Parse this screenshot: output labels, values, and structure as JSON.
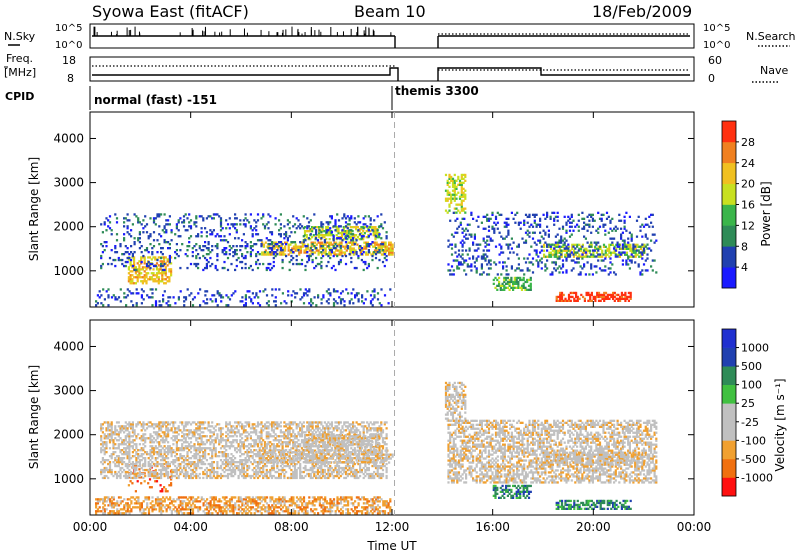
{
  "header": {
    "station": "Syowa East (fitACF)",
    "beam": "Beam 10",
    "date": "18/Feb/2009"
  },
  "strip_panels": {
    "nsky": {
      "label": "N.Sky",
      "tick_top": "10^5",
      "tick_bottom": "10^0"
    },
    "nsearch": {
      "label": "N.Search",
      "tick_top": "10^5",
      "tick_bottom": "10^0"
    },
    "freq": {
      "label_line1": "Freq.",
      "label_line2": "[MHz]",
      "tick_top": "18",
      "tick_bottom": "8"
    },
    "nave": {
      "label": "Nave",
      "tick_top": "60",
      "tick_bottom": "0"
    },
    "cpid": {
      "label": "CPID",
      "modes": [
        "normal (fast) -151",
        "themis 3300"
      ]
    }
  },
  "chart_data": [
    {
      "type": "heatmap",
      "quantity": "Power",
      "ylabel": "Slant Range [km]",
      "ylim": [
        180,
        4600
      ],
      "yticks": [
        1000,
        2000,
        3000,
        4000
      ],
      "xlim": [
        0,
        24
      ],
      "xtick_labels": [
        "00:00",
        "04:00",
        "08:00",
        "12:00",
        "16:00",
        "20:00",
        "00:00"
      ],
      "xticks": [
        0,
        4,
        8,
        12,
        16,
        20,
        24
      ],
      "colorbar": {
        "label": "Power [dB]",
        "tick_labels": [
          "4",
          "8",
          "12",
          "16",
          "20",
          "24",
          "28"
        ],
        "colors": [
          "#1a1aff",
          "#2040b0",
          "#2e8b57",
          "#3ab54a",
          "#c8e020",
          "#f0c020",
          "#f08020",
          "#ff3010"
        ]
      },
      "data_gap": [
        12.2,
        13.85
      ],
      "mode_change_hour": 12.1,
      "regions": [
        {
          "t": [
            0.2,
            11.9
          ],
          "r": [
            200,
            600
          ],
          "level": 1
        },
        {
          "t": [
            1.5,
            3.2
          ],
          "r": [
            700,
            1300
          ],
          "level": 5
        },
        {
          "t": [
            6.8,
            12.0
          ],
          "r": [
            1350,
            1650
          ],
          "level": 5
        },
        {
          "t": [
            8.5,
            11.5
          ],
          "r": [
            1700,
            2000
          ],
          "level": 4
        },
        {
          "t": [
            14.1,
            14.9
          ],
          "r": [
            2300,
            3200
          ],
          "level": 4
        },
        {
          "t": [
            18.0,
            22.0
          ],
          "r": [
            1300,
            1600
          ],
          "level": 4
        },
        {
          "t": [
            18.5,
            21.5
          ],
          "r": [
            300,
            500
          ],
          "level": 7
        },
        {
          "t": [
            16.0,
            17.5
          ],
          "r": [
            550,
            850
          ],
          "level": 3
        },
        {
          "t": [
            0.4,
            11.8
          ],
          "r": [
            1000,
            2300
          ],
          "level": 1
        },
        {
          "t": [
            14.2,
            22.5
          ],
          "r": [
            900,
            2300
          ],
          "level": 1
        }
      ]
    },
    {
      "type": "heatmap",
      "quantity": "Velocity",
      "ylabel": "Slant Range [km]",
      "ylim": [
        180,
        4600
      ],
      "yticks": [
        1000,
        2000,
        3000,
        4000
      ],
      "xlim": [
        0,
        24
      ],
      "xlabel": "Time UT",
      "xtick_labels": [
        "00:00",
        "04:00",
        "08:00",
        "12:00",
        "16:00",
        "20:00",
        "00:00"
      ],
      "xticks": [
        0,
        4,
        8,
        12,
        16,
        20,
        24
      ],
      "colorbar": {
        "label": "Velocity [m s⁻¹]",
        "tick_labels": [
          "-1000",
          "-500",
          "-100",
          "-25",
          "25",
          "100",
          "500",
          "1000"
        ],
        "colors": [
          "#ff1010",
          "#f07010",
          "#f0a030",
          "#c0c0c0",
          "#c0c0c0",
          "#40c040",
          "#2e8b57",
          "#2040b0",
          "#2030d0"
        ]
      },
      "data_gap": [
        12.2,
        13.85
      ],
      "mode_change_hour": 12.1,
      "regions": [
        {
          "t": [
            0.2,
            11.9
          ],
          "r": [
            200,
            600
          ],
          "level": 2
        },
        {
          "t": [
            1.5,
            3.2
          ],
          "r": [
            700,
            1300
          ],
          "level": 1
        },
        {
          "t": [
            6.8,
            12.0
          ],
          "r": [
            1350,
            1650
          ],
          "level": 3
        },
        {
          "t": [
            8.5,
            11.5
          ],
          "r": [
            1700,
            2000
          ],
          "level": 3
        },
        {
          "t": [
            14.1,
            14.9
          ],
          "r": [
            2300,
            3200
          ],
          "level": 3
        },
        {
          "t": [
            18.0,
            22.0
          ],
          "r": [
            1300,
            1600
          ],
          "level": 3
        },
        {
          "t": [
            18.5,
            21.5
          ],
          "r": [
            300,
            500
          ],
          "level": 6
        },
        {
          "t": [
            16.0,
            17.5
          ],
          "r": [
            550,
            850
          ],
          "level": 6
        },
        {
          "t": [
            0.4,
            11.8
          ],
          "r": [
            1000,
            2300
          ],
          "level": 3
        },
        {
          "t": [
            14.2,
            22.5
          ],
          "r": [
            900,
            2300
          ],
          "level": 3
        }
      ]
    }
  ]
}
